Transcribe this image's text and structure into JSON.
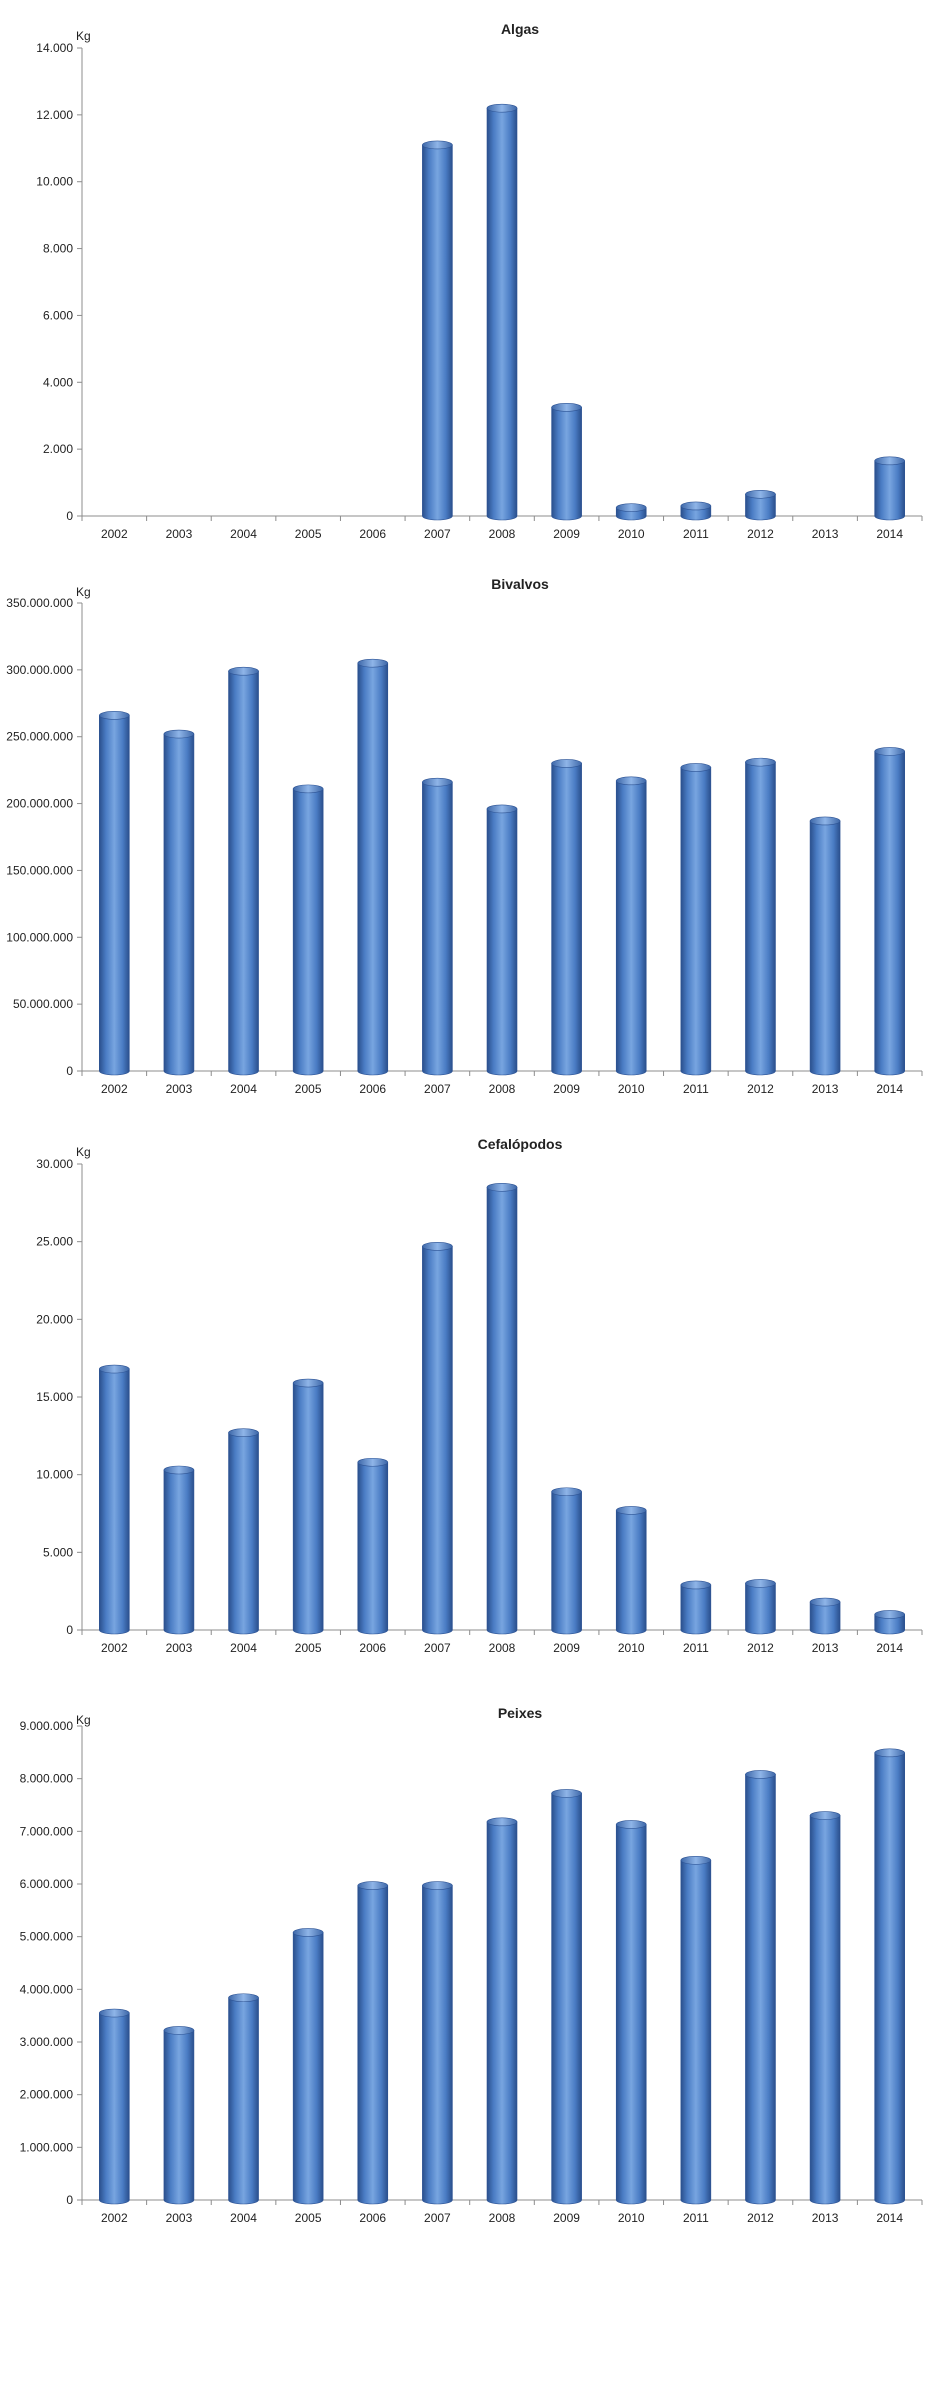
{
  "chart_data": [
    {
      "type": "bar",
      "title": "Algas",
      "ylabel": "Kg",
      "categories": [
        "2002",
        "2003",
        "2004",
        "2005",
        "2006",
        "2007",
        "2008",
        "2009",
        "2010",
        "2011",
        "2012",
        "2013",
        "2014"
      ],
      "values": [
        0,
        0,
        0,
        0,
        0,
        11100,
        12200,
        3250,
        250,
        300,
        650,
        0,
        1650
      ],
      "ylim": [
        0,
        14000
      ],
      "yticks": [
        0,
        2000,
        4000,
        6000,
        8000,
        10000,
        12000,
        14000
      ],
      "ytick_labels": [
        "0",
        "2.000",
        "4.000",
        "6.000",
        "8.000",
        "10.000",
        "12.000",
        "14.000"
      ],
      "grid": false,
      "color": "#4a7cc4"
    },
    {
      "type": "bar",
      "title": "Bivalvos",
      "ylabel": "Kg",
      "categories": [
        "2002",
        "2003",
        "2004",
        "2005",
        "2006",
        "2007",
        "2008",
        "2009",
        "2010",
        "2011",
        "2012",
        "2013",
        "2014"
      ],
      "values": [
        266000000,
        252000000,
        299000000,
        211000000,
        305000000,
        216000000,
        196000000,
        230000000,
        217000000,
        227000000,
        231000000,
        187000000,
        239000000
      ],
      "ylim": [
        0,
        350000000
      ],
      "yticks": [
        0,
        50000000,
        100000000,
        150000000,
        200000000,
        250000000,
        300000000,
        350000000
      ],
      "ytick_labels": [
        "0",
        "50.000.000",
        "100.000.000",
        "150.000.000",
        "200.000.000",
        "250.000.000",
        "300.000.000",
        "350.000.000"
      ],
      "grid": false,
      "color": "#4a7cc4"
    },
    {
      "type": "bar",
      "title": "Cefalópodos",
      "ylabel": "Kg",
      "categories": [
        "2002",
        "2003",
        "2004",
        "2005",
        "2006",
        "2007",
        "2008",
        "2009",
        "2010",
        "2011",
        "2012",
        "2013",
        "2014"
      ],
      "values": [
        16800,
        10300,
        12700,
        15900,
        10800,
        24700,
        28500,
        8900,
        7700,
        2900,
        3000,
        1800,
        1000
      ],
      "ylim": [
        0,
        30000
      ],
      "yticks": [
        0,
        5000,
        10000,
        15000,
        20000,
        25000,
        30000
      ],
      "ytick_labels": [
        "0",
        "5.000",
        "10.000",
        "15.000",
        "20.000",
        "25.000",
        "30.000"
      ],
      "grid": false,
      "color": "#4a7cc4"
    },
    {
      "type": "bar",
      "title": "Peixes",
      "ylabel": "Kg",
      "categories": [
        "2002",
        "2003",
        "2004",
        "2005",
        "2006",
        "2007",
        "2008",
        "2009",
        "2010",
        "2011",
        "2012",
        "2013",
        "2014"
      ],
      "values": [
        3550000,
        3220000,
        3840000,
        5080000,
        5970000,
        5970000,
        7180000,
        7720000,
        7130000,
        6450000,
        8080000,
        7300000,
        8490000
      ],
      "ylim": [
        0,
        9000000
      ],
      "yticks": [
        0,
        1000000,
        2000000,
        3000000,
        4000000,
        5000000,
        6000000,
        7000000,
        8000000,
        9000000
      ],
      "ytick_labels": [
        "0",
        "1.000.000",
        "2.000.000",
        "3.000.000",
        "4.000.000",
        "5.000.000",
        "6.000.000",
        "7.000.000",
        "8.000.000",
        "9.000.000"
      ],
      "grid": false,
      "color": "#4a7cc4"
    }
  ]
}
